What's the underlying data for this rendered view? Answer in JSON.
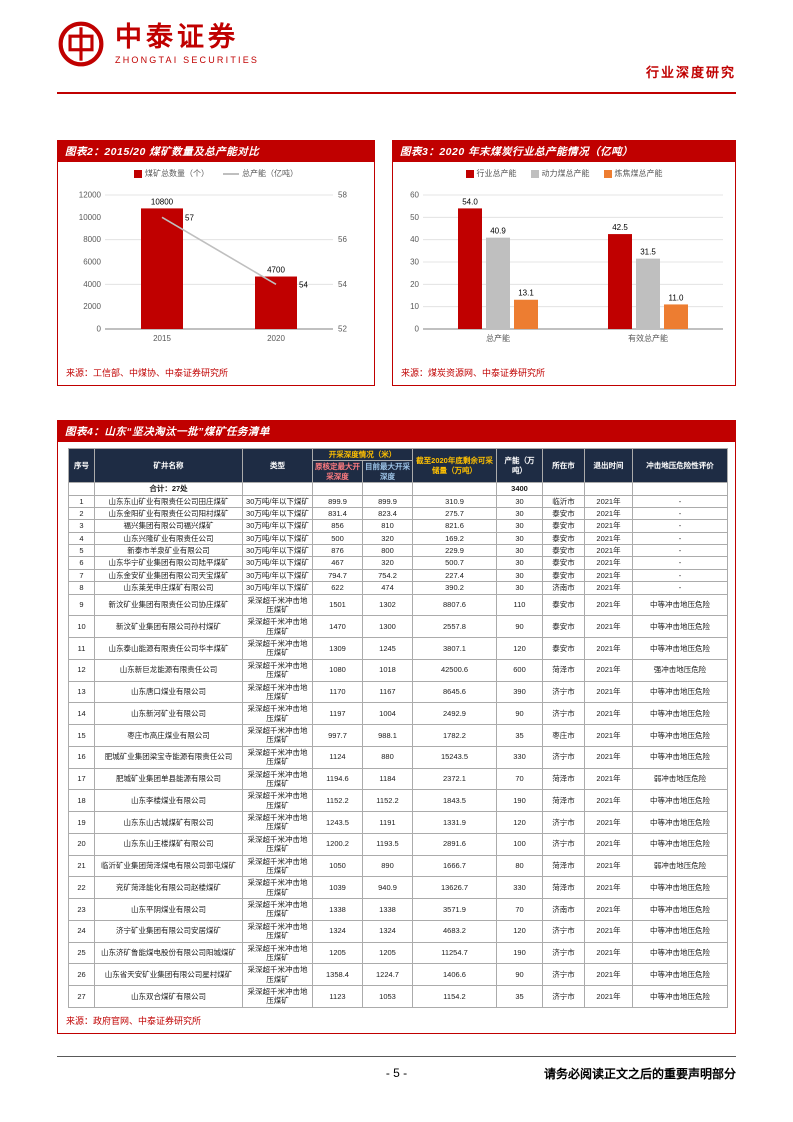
{
  "accent_color": "#C00000",
  "header": {
    "logo_title": "中泰证券",
    "logo_subtitle": "ZHONGTAI SECURITIES",
    "doc_type": "行业深度研究"
  },
  "figure2": {
    "title": "图表2：2015/20 煤矿数量及总产能对比",
    "source": "来源：工信部、中煤协、中泰证券研究所"
  },
  "figure3": {
    "title": "图表3：2020 年末煤炭行业总产能情况（亿吨）",
    "source": "来源：煤炭资源网、中泰证券研究所"
  },
  "figure4": {
    "title": "图表4：山东“坚决淘汰一批”煤矿任务清单",
    "source": "来源：政府官网、中泰证券研究所",
    "table": {
      "h": {
        "no": "序号",
        "name": "矿井名称",
        "type": "类型",
        "depth_group": "开采深度情况（米）",
        "depth_orig": "原核定最大开采深度",
        "depth_now": "目前最大开采深度",
        "reserve": "截至2020年底剩余可采储量（万吨）",
        "capacity": "产能（万吨）",
        "city": "所在市",
        "exit": "退出时间",
        "risk": "冲击地压危险性评价"
      },
      "summary": {
        "label": "合计：27处",
        "capacity": "3400"
      },
      "rows": [
        {
          "no": "1",
          "name": "山东东山矿业有限责任公司田庄煤矿",
          "type": "30万吨/年以下煤矿",
          "depth_orig": "899.9",
          "depth_now": "899.9",
          "reserve": "310.9",
          "capacity": "30",
          "city": "临沂市",
          "exit": "2021年",
          "risk": "-"
        },
        {
          "no": "2",
          "name": "山东金阳矿业有限责任公司阳村煤矿",
          "type": "30万吨/年以下煤矿",
          "depth_orig": "831.4",
          "depth_now": "823.4",
          "reserve": "275.7",
          "capacity": "30",
          "city": "泰安市",
          "exit": "2021年",
          "risk": "-"
        },
        {
          "no": "3",
          "name": "福兴集团有限公司福兴煤矿",
          "type": "30万吨/年以下煤矿",
          "depth_orig": "856",
          "depth_now": "810",
          "reserve": "821.6",
          "capacity": "30",
          "city": "泰安市",
          "exit": "2021年",
          "risk": "-"
        },
        {
          "no": "4",
          "name": "山东兴隆矿业有限责任公司",
          "type": "30万吨/年以下煤矿",
          "depth_orig": "500",
          "depth_now": "320",
          "reserve": "169.2",
          "capacity": "30",
          "city": "泰安市",
          "exit": "2021年",
          "risk": "-"
        },
        {
          "no": "5",
          "name": "新泰市羊泉矿业有限公司",
          "type": "30万吨/年以下煤矿",
          "depth_orig": "876",
          "depth_now": "800",
          "reserve": "229.9",
          "capacity": "30",
          "city": "泰安市",
          "exit": "2021年",
          "risk": "-"
        },
        {
          "no": "6",
          "name": "山东华宁矿业集团有限公司陆平煤矿",
          "type": "30万吨/年以下煤矿",
          "depth_orig": "467",
          "depth_now": "320",
          "reserve": "500.7",
          "capacity": "30",
          "city": "泰安市",
          "exit": "2021年",
          "risk": "-"
        },
        {
          "no": "7",
          "name": "山东金安矿业集团有限公司天宝煤矿",
          "type": "30万吨/年以下煤矿",
          "depth_orig": "794.7",
          "depth_now": "754.2",
          "reserve": "227.4",
          "capacity": "30",
          "city": "泰安市",
          "exit": "2021年",
          "risk": "-"
        },
        {
          "no": "8",
          "name": "山东莱芜申庄煤矿有限公司",
          "type": "30万吨/年以下煤矿",
          "depth_orig": "622",
          "depth_now": "474",
          "reserve": "390.2",
          "capacity": "30",
          "city": "济南市",
          "exit": "2021年",
          "risk": "-"
        },
        {
          "no": "9",
          "name": "新汶矿业集团有限责任公司协庄煤矿",
          "type": "采深超千米冲击地压煤矿",
          "depth_orig": "1501",
          "depth_now": "1302",
          "reserve": "8807.6",
          "capacity": "110",
          "city": "泰安市",
          "exit": "2021年",
          "risk": "中等冲击地压危险"
        },
        {
          "no": "10",
          "name": "新汶矿业集团有限公司孙村煤矿",
          "type": "采深超千米冲击地压煤矿",
          "depth_orig": "1470",
          "depth_now": "1300",
          "reserve": "2557.8",
          "capacity": "90",
          "city": "泰安市",
          "exit": "2021年",
          "risk": "中等冲击地压危险"
        },
        {
          "no": "11",
          "name": "山东泰山能源有限责任公司华丰煤矿",
          "type": "采深超千米冲击地压煤矿",
          "depth_orig": "1309",
          "depth_now": "1245",
          "reserve": "3807.1",
          "capacity": "120",
          "city": "泰安市",
          "exit": "2021年",
          "risk": "中等冲击地压危险"
        },
        {
          "no": "12",
          "name": "山东新巨龙能源有限责任公司",
          "type": "采深超千米冲击地压煤矿",
          "depth_orig": "1080",
          "depth_now": "1018",
          "reserve": "42500.6",
          "capacity": "600",
          "city": "菏泽市",
          "exit": "2021年",
          "risk": "强冲击地压危险"
        },
        {
          "no": "13",
          "name": "山东唐口煤业有限公司",
          "type": "采深超千米冲击地压煤矿",
          "depth_orig": "1170",
          "depth_now": "1167",
          "reserve": "8645.6",
          "capacity": "390",
          "city": "济宁市",
          "exit": "2021年",
          "risk": "中等冲击地压危险"
        },
        {
          "no": "14",
          "name": "山东新河矿业有限公司",
          "type": "采深超千米冲击地压煤矿",
          "depth_orig": "1197",
          "depth_now": "1004",
          "reserve": "2492.9",
          "capacity": "90",
          "city": "济宁市",
          "exit": "2021年",
          "risk": "中等冲击地压危险"
        },
        {
          "no": "15",
          "name": "枣庄市高庄煤业有限公司",
          "type": "采深超千米冲击地压煤矿",
          "depth_orig": "997.7",
          "depth_now": "988.1",
          "reserve": "1782.2",
          "capacity": "35",
          "city": "枣庄市",
          "exit": "2021年",
          "risk": "中等冲击地压危险"
        },
        {
          "no": "16",
          "name": "肥城矿业集团梁宝寺能源有限责任公司",
          "type": "采深超千米冲击地压煤矿",
          "depth_orig": "1124",
          "depth_now": "880",
          "reserve": "15243.5",
          "capacity": "330",
          "city": "济宁市",
          "exit": "2021年",
          "risk": "中等冲击地压危险"
        },
        {
          "no": "17",
          "name": "肥城矿业集团单县能源有限公司",
          "type": "采深超千米冲击地压煤矿",
          "depth_orig": "1194.6",
          "depth_now": "1184",
          "reserve": "2372.1",
          "capacity": "70",
          "city": "菏泽市",
          "exit": "2021年",
          "risk": "弱冲击地压危险"
        },
        {
          "no": "18",
          "name": "山东李楼煤业有限公司",
          "type": "采深超千米冲击地压煤矿",
          "depth_orig": "1152.2",
          "depth_now": "1152.2",
          "reserve": "1843.5",
          "capacity": "190",
          "city": "菏泽市",
          "exit": "2021年",
          "risk": "中等冲击地压危险"
        },
        {
          "no": "19",
          "name": "山东东山古城煤矿有限公司",
          "type": "采深超千米冲击地压煤矿",
          "depth_orig": "1243.5",
          "depth_now": "1191",
          "reserve": "1331.9",
          "capacity": "120",
          "city": "济宁市",
          "exit": "2021年",
          "risk": "中等冲击地压危险"
        },
        {
          "no": "20",
          "name": "山东东山王楼煤矿有限公司",
          "type": "采深超千米冲击地压煤矿",
          "depth_orig": "1200.2",
          "depth_now": "1193.5",
          "reserve": "2891.6",
          "capacity": "100",
          "city": "济宁市",
          "exit": "2021年",
          "risk": "中等冲击地压危险"
        },
        {
          "no": "21",
          "name": "临沂矿业集团菏泽煤电有限公司郭屯煤矿",
          "type": "采深超千米冲击地压煤矿",
          "depth_orig": "1050",
          "depth_now": "890",
          "reserve": "1666.7",
          "capacity": "80",
          "city": "菏泽市",
          "exit": "2021年",
          "risk": "弱冲击地压危险"
        },
        {
          "no": "22",
          "name": "兖矿菏泽能化有限公司赵楼煤矿",
          "type": "采深超千米冲击地压煤矿",
          "depth_orig": "1039",
          "depth_now": "940.9",
          "reserve": "13626.7",
          "capacity": "330",
          "city": "菏泽市",
          "exit": "2021年",
          "risk": "中等冲击地压危险"
        },
        {
          "no": "23",
          "name": "山东平阴煤业有限公司",
          "type": "采深超千米冲击地压煤矿",
          "depth_orig": "1338",
          "depth_now": "1338",
          "reserve": "3571.9",
          "capacity": "70",
          "city": "济南市",
          "exit": "2021年",
          "risk": "中等冲击地压危险"
        },
        {
          "no": "24",
          "name": "济宁矿业集团有限公司安居煤矿",
          "type": "采深超千米冲击地压煤矿",
          "depth_orig": "1324",
          "depth_now": "1324",
          "reserve": "4683.2",
          "capacity": "120",
          "city": "济宁市",
          "exit": "2021年",
          "risk": "中等冲击地压危险"
        },
        {
          "no": "25",
          "name": "山东济矿鲁能煤电股份有限公司阳城煤矿",
          "type": "采深超千米冲击地压煤矿",
          "depth_orig": "1205",
          "depth_now": "1205",
          "reserve": "11254.7",
          "capacity": "190",
          "city": "济宁市",
          "exit": "2021年",
          "risk": "中等冲击地压危险"
        },
        {
          "no": "26",
          "name": "山东省天安矿业集团有限公司星村煤矿",
          "type": "采深超千米冲击地压煤矿",
          "depth_orig": "1358.4",
          "depth_now": "1224.7",
          "reserve": "1406.6",
          "capacity": "90",
          "city": "济宁市",
          "exit": "2021年",
          "risk": "中等冲击地压危险"
        },
        {
          "no": "27",
          "name": "山东双合煤矿有限公司",
          "type": "采深超千米冲击地压煤矿",
          "depth_orig": "1123",
          "depth_now": "1053",
          "reserve": "1154.2",
          "capacity": "35",
          "city": "济宁市",
          "exit": "2021年",
          "risk": "中等冲击地压危险"
        }
      ]
    }
  },
  "chart_data": [
    {
      "type": "bar",
      "title": "2015/20煤矿数量及总产能对比",
      "categories": [
        "2015",
        "2020"
      ],
      "series": [
        {
          "name": "煤矿总数量（个）",
          "kind": "bar",
          "axis": "left",
          "color": "#C00000",
          "values": [
            10800,
            4700
          ]
        },
        {
          "name": "总产能（亿吨）",
          "kind": "line",
          "axis": "right",
          "color": "#BFBFBF",
          "values": [
            57,
            54
          ]
        }
      ],
      "left_axis": {
        "min": 0,
        "max": 12000,
        "step": 2000
      },
      "right_axis": {
        "min": 52,
        "max": 58,
        "step": 2
      },
      "grid": true,
      "legend_position": "top"
    },
    {
      "type": "bar",
      "title": "2020年末煤炭行业总产能情况（亿吨）",
      "categories": [
        "总产能",
        "有效总产能"
      ],
      "series": [
        {
          "name": "行业总产能",
          "color": "#C00000",
          "values": [
            54.0,
            42.5
          ]
        },
        {
          "name": "动力煤总产能",
          "color": "#BFBFBF",
          "values": [
            40.9,
            31.5
          ]
        },
        {
          "name": "炼焦煤总产能",
          "color": "#ED7D31",
          "values": [
            13.1,
            11.0
          ]
        }
      ],
      "y_axis": {
        "min": 0,
        "max": 60,
        "step": 10
      },
      "grid": true,
      "legend_position": "top"
    }
  ],
  "footer": {
    "page_number": "- 5 -",
    "disclaimer": "请务必阅读正文之后的重要声明部分"
  }
}
